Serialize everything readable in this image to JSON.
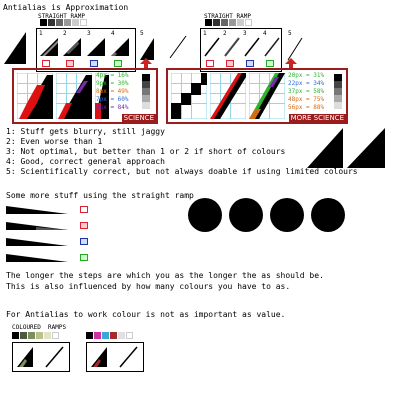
{
  "title": "Antialias is Approximation",
  "ramp_left_label": "STRAIGHT RAMP",
  "ramp_right_label": "STRAIGHT RAMP",
  "variant_numbers": [
    "1",
    "2",
    "3",
    "4",
    "5"
  ],
  "science_label": "SCIENCE",
  "more_science_label": "MORE SCIENCE",
  "science_stats": [
    "4px = 16%",
    "9px = 30%",
    "8px = 49%",
    "7px = 60%",
    "5px = 84%"
  ],
  "more_science_stats": [
    "20px = 31%",
    "22px = 34%",
    "37px = 58%",
    "48px = 75%",
    "56px = 88%"
  ],
  "notes": [
    "1: Stuff gets blurry, still jaggy",
    "2: Even worse than 1",
    "3: Not optimal, but better than 1 or 2 if short of colours",
    "4: Good, correct general approach",
    "5: Scientifically correct, but not always doable if using limited colours"
  ],
  "more_stuff": "Some more stuff using the straight ramp",
  "longer_steps_1": "The longer the steps are which you as the longer the as should be.",
  "longer_steps_2": "This is also influenced by how many colours you have to as.",
  "colour_value": "For Antialias to work colour is not as important as value.",
  "coloured_ramps": "COLOURED",
  "ramps": "RAMPS",
  "colors": {
    "frame_red": "#9b1c1c",
    "grid_cyan": "#8fd8ee",
    "green": "#2cb52c",
    "purple": "#7a2aa8",
    "orange": "#d76b12"
  }
}
